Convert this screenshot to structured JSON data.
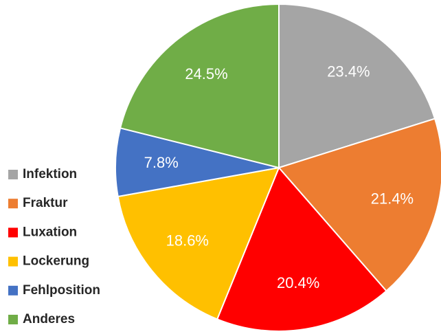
{
  "chart_data": {
    "type": "pie",
    "categories": [
      "Infektion",
      "Fraktur",
      "Luxation",
      "Lockerung",
      "Fehlposition",
      "Anderes"
    ],
    "values": [
      23.4,
      21.4,
      20.4,
      18.6,
      7.8,
      24.5
    ],
    "value_labels": [
      "23.4%",
      "21.4%",
      "20.4%",
      "18.6%",
      "7.8%",
      "24.5%"
    ],
    "colors": [
      "#a5a5a5",
      "#ed7d31",
      "#ff0000",
      "#ffc000",
      "#4472c4",
      "#70ad47"
    ],
    "legend": "left"
  }
}
